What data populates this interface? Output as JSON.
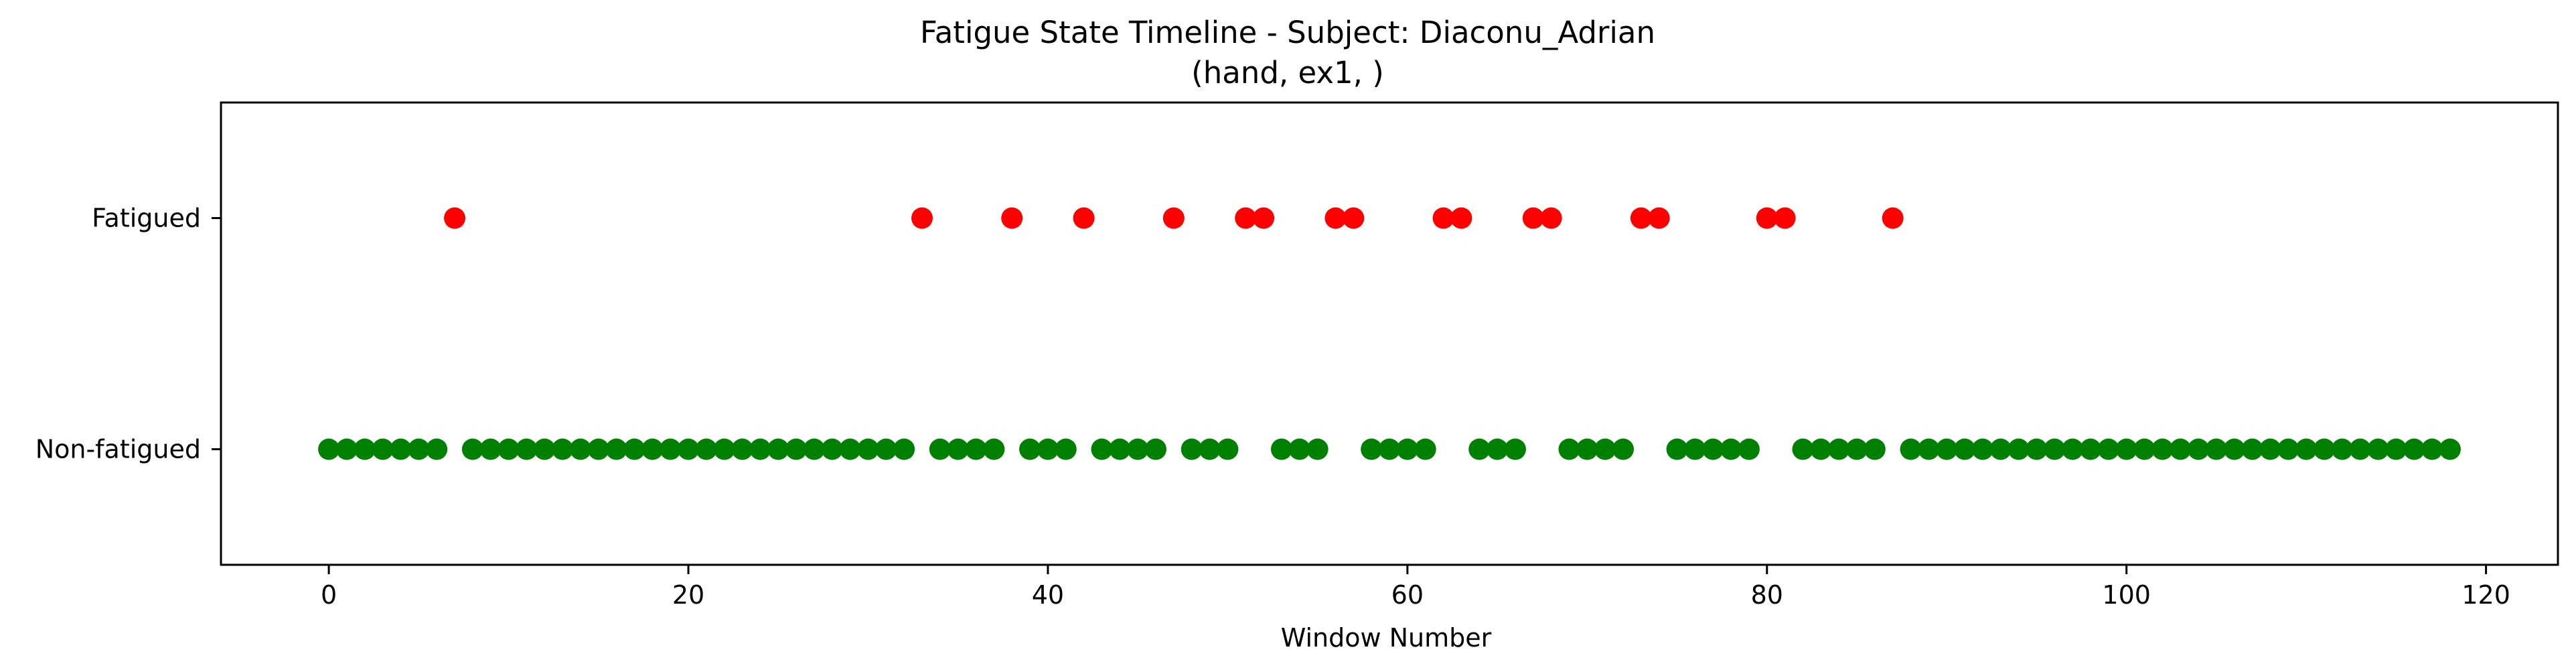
{
  "chart_data": {
    "type": "scatter",
    "title": "Fatigue State Timeline - Subject: Diaconu_Adrian",
    "subtitle": "(hand, ex1, )",
    "xlabel": "Window Number",
    "ylabel": "",
    "xlim": [
      -6,
      124
    ],
    "xticks": [
      "0",
      "20",
      "40",
      "60",
      "80",
      "100",
      "120"
    ],
    "ylim": [
      -0.5,
      1.5
    ],
    "yticks": [
      "Non-fatigued",
      "Fatigued"
    ],
    "grid": false,
    "colors": {
      "Fatigued": "#ff0000",
      "Non-fatigued": "#008000"
    },
    "fatigued_windows": [
      7,
      33,
      38,
      42,
      47,
      51,
      52,
      56,
      57,
      62,
      63,
      67,
      68,
      73,
      74,
      80,
      81,
      87
    ],
    "x_start": 0,
    "x_end": 118
  }
}
